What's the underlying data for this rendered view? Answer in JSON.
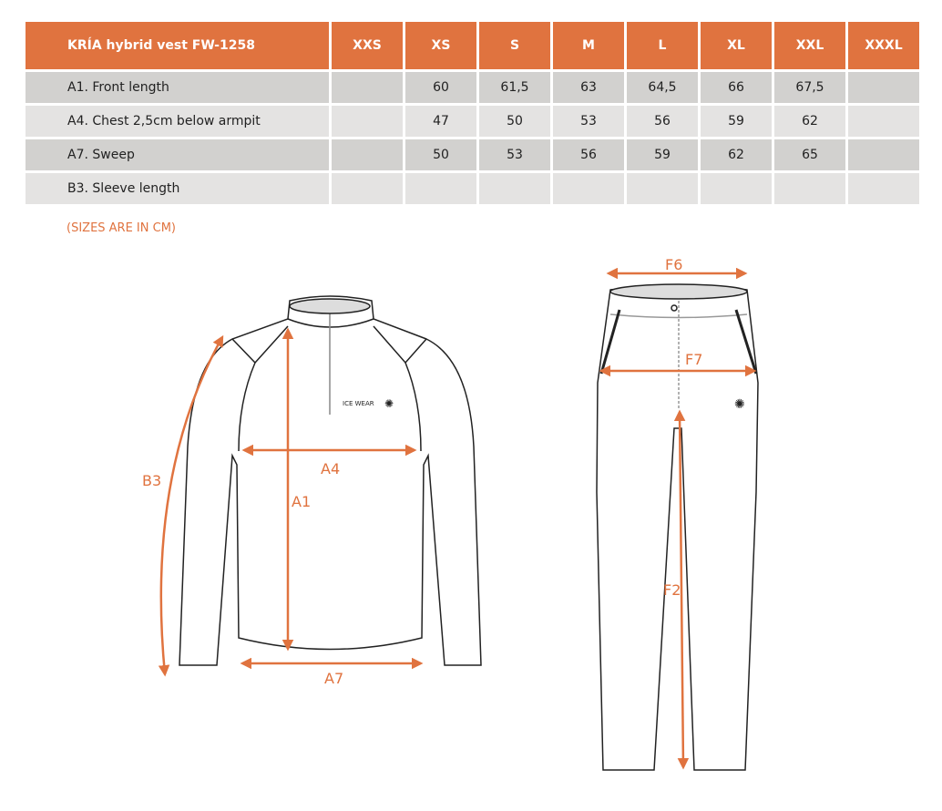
{
  "table": {
    "title": "KRÍA hybrid vest FW-1258",
    "sizes": [
      "XXS",
      "XS",
      "S",
      "M",
      "L",
      "XL",
      "XXL",
      "XXXL"
    ],
    "rows": [
      {
        "label": "A1. Front length",
        "values": [
          "",
          "60",
          "61,5",
          "63",
          "64,5",
          "66",
          "67,5",
          ""
        ]
      },
      {
        "label": "A4. Chest 2,5cm below armpit",
        "values": [
          "",
          "47",
          "50",
          "53",
          "56",
          "59",
          "62",
          ""
        ]
      },
      {
        "label": "A7. Sweep",
        "values": [
          "",
          "50",
          "53",
          "56",
          "59",
          "62",
          "65",
          ""
        ]
      },
      {
        "label": "B3. Sleeve length",
        "values": [
          "",
          "",
          "",
          "",
          "",
          "",
          "",
          ""
        ]
      }
    ]
  },
  "note": "(SIZES ARE IN CM)",
  "diagram": {
    "jacket_labels": {
      "a1": "A1",
      "a4": "A4",
      "a7": "A7",
      "b3": "B3"
    },
    "pants_labels": {
      "f2": "F2",
      "f6": "F6",
      "f7": "F7"
    },
    "logo": "ICE WEAR"
  },
  "colors": {
    "accent": "#e0733f",
    "row_dark": "#d2d1cf",
    "row_light": "#e4e3e2"
  }
}
